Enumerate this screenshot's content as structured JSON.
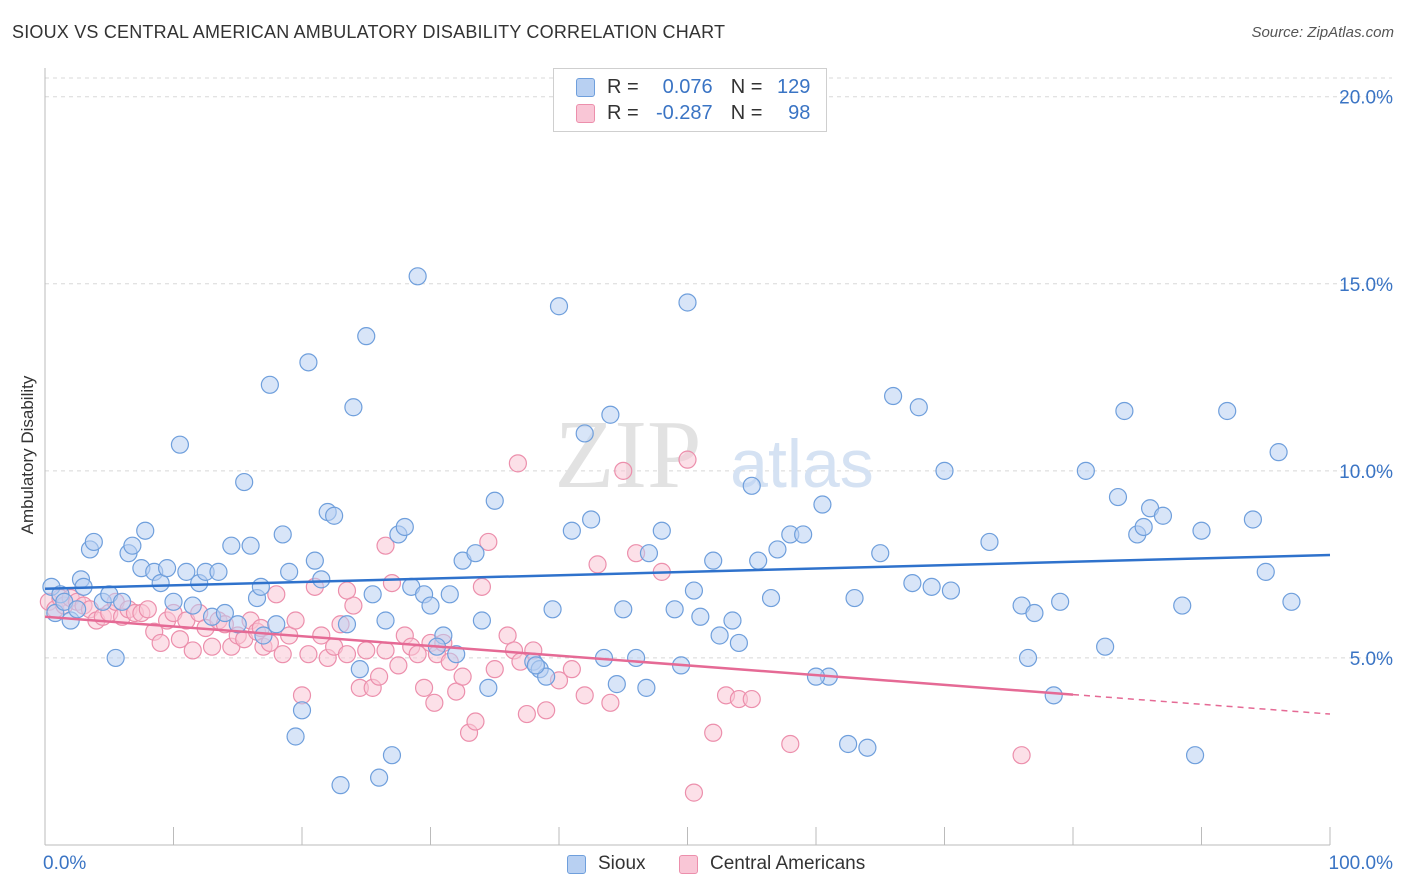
{
  "header": {
    "title": "SIOUX VS CENTRAL AMERICAN AMBULATORY DISABILITY CORRELATION CHART",
    "source": "Source: ZipAtlas.com"
  },
  "legend_top": {
    "rows": [
      {
        "r_label": "R =",
        "r_value": "0.076",
        "n_label": "N =",
        "n_value": "129"
      },
      {
        "r_label": "R =",
        "r_value": "-0.287",
        "n_label": "N =",
        "n_value": "98"
      }
    ]
  },
  "legend_bottom": {
    "items": [
      {
        "label": "Sioux"
      },
      {
        "label": "Central Americans"
      }
    ]
  },
  "watermark": {
    "zip": "ZIP",
    "atlas": "atlas"
  },
  "colors": {
    "blue_fill": "#b8d0f2",
    "blue_stroke": "#6f9fdc",
    "blue_line": "#2f72cc",
    "pink_fill": "#f9c6d6",
    "pink_stroke": "#ec8fac",
    "pink_line": "#e56a95",
    "tick_label": "#3a74c4",
    "grid": "#d8d8d8"
  },
  "chart_data": {
    "type": "scatter",
    "title": "SIOUX VS CENTRAL AMERICAN AMBULATORY DISABILITY CORRELATION CHART",
    "xlabel": "",
    "ylabel": "Ambulatory Disability",
    "xlim": [
      0,
      100
    ],
    "ylim": [
      0,
      20.5
    ],
    "x_tick_labels": [
      "0.0%",
      "100.0%"
    ],
    "y_ticks": [
      5,
      10,
      15,
      20
    ],
    "y_tick_labels": [
      "5.0%",
      "10.0%",
      "15.0%",
      "20.0%"
    ],
    "grid": true,
    "legend_position": "top-center",
    "series": [
      {
        "name": "Sioux",
        "R": 0.076,
        "N": 129,
        "trend": {
          "x0": 0,
          "y0": 6.85,
          "x1": 100,
          "y1": 7.75,
          "dashed_from_x": null
        },
        "points": [
          [
            0.5,
            6.9
          ],
          [
            0.8,
            6.2
          ],
          [
            1.2,
            6.7
          ],
          [
            1.5,
            6.5
          ],
          [
            2.0,
            6.0
          ],
          [
            2.5,
            6.3
          ],
          [
            2.8,
            7.1
          ],
          [
            3.5,
            7.9
          ],
          [
            3.8,
            8.1
          ],
          [
            4.5,
            6.5
          ],
          [
            5.0,
            6.7
          ],
          [
            5.5,
            5.0
          ],
          [
            6.0,
            6.5
          ],
          [
            6.5,
            7.8
          ],
          [
            6.8,
            8.0
          ],
          [
            7.5,
            7.4
          ],
          [
            7.8,
            8.4
          ],
          [
            8.5,
            7.3
          ],
          [
            9.0,
            7.0
          ],
          [
            9.5,
            7.4
          ],
          [
            10.0,
            6.5
          ],
          [
            10.5,
            10.7
          ],
          [
            11.0,
            7.3
          ],
          [
            11.5,
            6.4
          ],
          [
            12.0,
            7.0
          ],
          [
            12.5,
            7.3
          ],
          [
            13.0,
            6.1
          ],
          [
            13.5,
            7.3
          ],
          [
            14.0,
            6.2
          ],
          [
            14.5,
            8.0
          ],
          [
            15.0,
            5.9
          ],
          [
            15.5,
            9.7
          ],
          [
            16.0,
            8.0
          ],
          [
            16.5,
            6.6
          ],
          [
            17.0,
            5.6
          ],
          [
            17.5,
            12.3
          ],
          [
            18.0,
            5.9
          ],
          [
            18.5,
            8.3
          ],
          [
            19.0,
            7.3
          ],
          [
            19.5,
            2.9
          ],
          [
            20.0,
            3.6
          ],
          [
            20.5,
            12.9
          ],
          [
            21.0,
            7.6
          ],
          [
            21.5,
            7.1
          ],
          [
            22.0,
            8.9
          ],
          [
            22.5,
            8.8
          ],
          [
            23.0,
            1.6
          ],
          [
            23.5,
            5.9
          ],
          [
            24.0,
            11.7
          ],
          [
            24.5,
            4.7
          ],
          [
            25.0,
            13.6
          ],
          [
            25.5,
            6.7
          ],
          [
            26.0,
            1.8
          ],
          [
            26.5,
            6.0
          ],
          [
            27.0,
            2.4
          ],
          [
            27.5,
            8.3
          ],
          [
            28.0,
            8.5
          ],
          [
            28.5,
            6.9
          ],
          [
            29.0,
            15.2
          ],
          [
            29.5,
            6.7
          ],
          [
            30.0,
            6.4
          ],
          [
            31.0,
            5.6
          ],
          [
            31.5,
            6.7
          ],
          [
            32.0,
            5.1
          ],
          [
            32.5,
            7.6
          ],
          [
            33.5,
            7.8
          ],
          [
            34.0,
            6.0
          ],
          [
            34.5,
            4.2
          ],
          [
            35.0,
            9.2
          ],
          [
            38.0,
            4.9
          ],
          [
            38.5,
            4.7
          ],
          [
            39.0,
            4.5
          ],
          [
            39.5,
            6.3
          ],
          [
            40.0,
            14.4
          ],
          [
            41.0,
            8.4
          ],
          [
            42.0,
            11.0
          ],
          [
            42.5,
            8.7
          ],
          [
            43.5,
            5.0
          ],
          [
            44.0,
            11.5
          ],
          [
            44.5,
            4.3
          ],
          [
            45.0,
            6.3
          ],
          [
            46.0,
            5.0
          ],
          [
            47.0,
            7.8
          ],
          [
            48.0,
            8.4
          ],
          [
            49.0,
            6.3
          ],
          [
            50.0,
            14.5
          ],
          [
            50.5,
            6.8
          ],
          [
            51.0,
            6.1
          ],
          [
            52.0,
            7.6
          ],
          [
            52.5,
            5.6
          ],
          [
            53.5,
            6.0
          ],
          [
            54.0,
            5.4
          ],
          [
            55.0,
            9.6
          ],
          [
            55.5,
            7.6
          ],
          [
            56.5,
            6.6
          ],
          [
            57.0,
            7.9
          ],
          [
            58.0,
            8.3
          ],
          [
            59.0,
            8.3
          ],
          [
            60.5,
            9.1
          ],
          [
            61.0,
            4.5
          ],
          [
            62.5,
            2.7
          ],
          [
            63.0,
            6.6
          ],
          [
            64.0,
            2.6
          ],
          [
            65.0,
            7.8
          ],
          [
            66.0,
            12.0
          ],
          [
            67.5,
            7.0
          ],
          [
            68.0,
            11.7
          ],
          [
            69.0,
            6.9
          ],
          [
            70.0,
            10.0
          ],
          [
            70.5,
            6.8
          ],
          [
            73.5,
            8.1
          ],
          [
            76.0,
            6.4
          ],
          [
            76.5,
            5.0
          ],
          [
            77.0,
            6.2
          ],
          [
            78.5,
            4.0
          ],
          [
            79.0,
            6.5
          ],
          [
            81.0,
            10.0
          ],
          [
            82.5,
            5.3
          ],
          [
            83.5,
            9.3
          ],
          [
            84.0,
            11.6
          ],
          [
            85.0,
            8.3
          ],
          [
            85.5,
            8.5
          ],
          [
            86.0,
            9.0
          ],
          [
            87.0,
            8.8
          ],
          [
            88.5,
            6.4
          ],
          [
            89.5,
            2.4
          ],
          [
            90.0,
            8.4
          ],
          [
            92.0,
            11.6
          ],
          [
            94.0,
            8.7
          ],
          [
            95.0,
            7.3
          ],
          [
            96.0,
            10.5
          ],
          [
            97.0,
            6.5
          ],
          [
            3.0,
            6.9
          ],
          [
            16.8,
            6.9
          ],
          [
            38.2,
            4.8
          ],
          [
            46.8,
            4.2
          ],
          [
            60.0,
            4.5
          ],
          [
            49.5,
            4.8
          ],
          [
            30.5,
            5.3
          ]
        ]
      },
      {
        "name": "Central Americans",
        "R": -0.287,
        "N": 98,
        "trend": {
          "x0": 0,
          "y0": 6.1,
          "x1": 100,
          "y1": 3.5,
          "dashed_from_x": 80
        },
        "points": [
          [
            0.3,
            6.5
          ],
          [
            0.8,
            6.3
          ],
          [
            1.2,
            6.6
          ],
          [
            1.5,
            6.4
          ],
          [
            2.0,
            6.6
          ],
          [
            2.5,
            6.5
          ],
          [
            3.0,
            6.4
          ],
          [
            3.5,
            6.3
          ],
          [
            4.0,
            6.0
          ],
          [
            4.5,
            6.1
          ],
          [
            5.0,
            6.2
          ],
          [
            5.5,
            6.5
          ],
          [
            6.0,
            6.1
          ],
          [
            6.5,
            6.3
          ],
          [
            7.0,
            6.2
          ],
          [
            7.5,
            6.2
          ],
          [
            8.0,
            6.3
          ],
          [
            8.5,
            5.7
          ],
          [
            9.0,
            5.4
          ],
          [
            9.5,
            6.0
          ],
          [
            10.0,
            6.2
          ],
          [
            10.5,
            5.5
          ],
          [
            11.0,
            6.0
          ],
          [
            11.5,
            5.2
          ],
          [
            12.0,
            6.2
          ],
          [
            12.5,
            5.8
          ],
          [
            13.0,
            5.3
          ],
          [
            13.5,
            6.0
          ],
          [
            14.0,
            5.9
          ],
          [
            14.5,
            5.3
          ],
          [
            15.0,
            5.6
          ],
          [
            15.5,
            5.5
          ],
          [
            16.0,
            6.0
          ],
          [
            16.5,
            5.7
          ],
          [
            17.0,
            5.3
          ],
          [
            17.5,
            5.4
          ],
          [
            18.0,
            6.7
          ],
          [
            18.5,
            5.1
          ],
          [
            19.0,
            5.6
          ],
          [
            19.5,
            6.0
          ],
          [
            20.0,
            4.0
          ],
          [
            20.5,
            5.1
          ],
          [
            21.0,
            6.9
          ],
          [
            21.5,
            5.6
          ],
          [
            22.0,
            5.0
          ],
          [
            22.5,
            5.3
          ],
          [
            23.0,
            5.9
          ],
          [
            23.5,
            5.1
          ],
          [
            24.0,
            6.4
          ],
          [
            24.5,
            4.2
          ],
          [
            25.0,
            5.2
          ],
          [
            25.5,
            4.2
          ],
          [
            26.0,
            4.5
          ],
          [
            26.5,
            5.2
          ],
          [
            27.0,
            7.0
          ],
          [
            27.5,
            4.8
          ],
          [
            28.0,
            5.6
          ],
          [
            28.5,
            5.3
          ],
          [
            29.0,
            5.1
          ],
          [
            29.5,
            4.2
          ],
          [
            30.0,
            5.4
          ],
          [
            30.5,
            5.1
          ],
          [
            31.0,
            5.4
          ],
          [
            31.5,
            4.9
          ],
          [
            32.0,
            4.1
          ],
          [
            32.5,
            4.5
          ],
          [
            33.0,
            3.0
          ],
          [
            33.5,
            3.3
          ],
          [
            34.0,
            6.9
          ],
          [
            34.5,
            8.1
          ],
          [
            35.0,
            4.7
          ],
          [
            36.0,
            5.6
          ],
          [
            36.5,
            5.2
          ],
          [
            37.0,
            4.9
          ],
          [
            37.5,
            3.5
          ],
          [
            38.0,
            5.2
          ],
          [
            39.0,
            3.6
          ],
          [
            40.0,
            4.4
          ],
          [
            41.0,
            4.7
          ],
          [
            42.0,
            4.0
          ],
          [
            43.0,
            7.5
          ],
          [
            44.0,
            3.8
          ],
          [
            45.0,
            10.0
          ],
          [
            46.0,
            7.8
          ],
          [
            48.0,
            7.3
          ],
          [
            50.0,
            10.3
          ],
          [
            50.5,
            1.4
          ],
          [
            52.0,
            3.0
          ],
          [
            53.0,
            4.0
          ],
          [
            54.0,
            3.9
          ],
          [
            55.0,
            3.9
          ],
          [
            58.0,
            2.7
          ],
          [
            76.0,
            2.4
          ],
          [
            36.8,
            10.2
          ],
          [
            26.5,
            8.0
          ],
          [
            23.5,
            6.8
          ],
          [
            16.8,
            5.8
          ],
          [
            30.3,
            3.8
          ]
        ]
      }
    ]
  }
}
